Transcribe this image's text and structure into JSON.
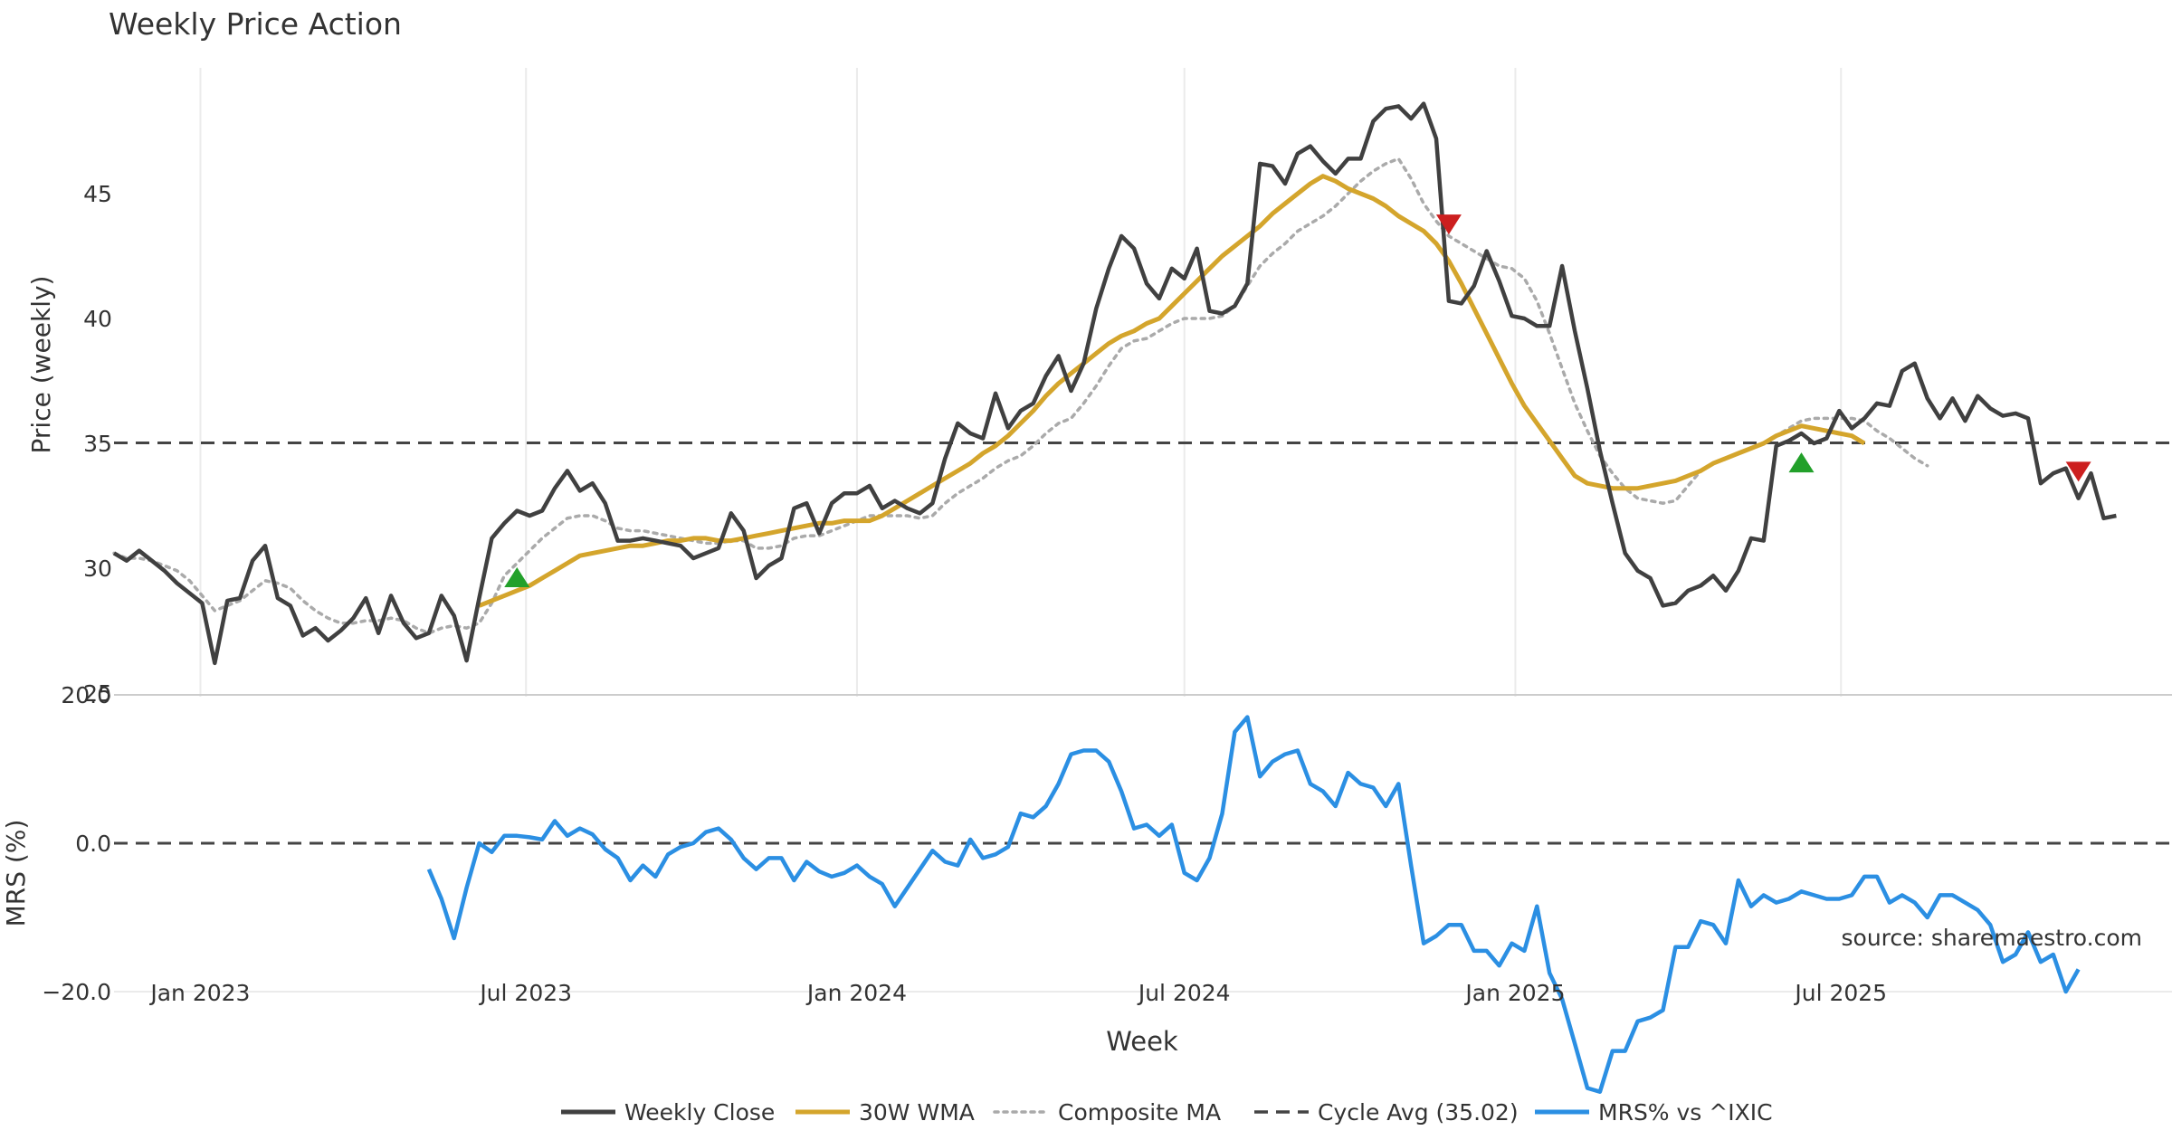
{
  "title": "Weekly Price Action",
  "source": "source: sharemaestro.com",
  "colors": {
    "close": "#404040",
    "wma": "#d4a52c",
    "composite": "#aaaaaa",
    "cycle": "#444444",
    "mrs": "#2b8fe3",
    "buy": "#22a02a",
    "sell": "#cc1f1f",
    "grid": "#ebebeb"
  },
  "chart_data": [
    {
      "type": "line",
      "title": "Weekly Price Action",
      "xlabel": "",
      "ylabel": "Price (weekly)",
      "ylim": [
        25,
        50
      ],
      "yticks": [
        25,
        30,
        35,
        40,
        45
      ],
      "xlim": [
        "2022-11-14",
        "2025-12-31"
      ],
      "grid": true,
      "series": [
        {
          "name": "Weekly Close",
          "x_start": "2022-11-14",
          "x_step_days": 7,
          "values": [
            30.6,
            30.3,
            30.7,
            30.3,
            29.9,
            29.4,
            29.0,
            28.6,
            26.2,
            28.7,
            28.8,
            30.3,
            30.9,
            28.8,
            28.5,
            27.3,
            27.6,
            27.1,
            27.5,
            28.0,
            28.8,
            27.4,
            28.9,
            27.8,
            27.2,
            27.4,
            28.9,
            28.1,
            26.3,
            28.8,
            31.2,
            31.8,
            32.3,
            32.1,
            32.3,
            33.2,
            33.9,
            33.1,
            33.4,
            32.6,
            31.1,
            31.1,
            31.2,
            31.1,
            31.0,
            30.9,
            30.4,
            30.6,
            30.8,
            32.2,
            31.5,
            29.6,
            30.1,
            30.4,
            32.4,
            32.6,
            31.4,
            32.6,
            33.0,
            33.0,
            33.3,
            32.4,
            32.7,
            32.4,
            32.2,
            32.6,
            34.4,
            35.8,
            35.4,
            35.2,
            37.0,
            35.6,
            36.3,
            36.6,
            37.7,
            38.5,
            37.1,
            38.2,
            40.4,
            42.0,
            43.3,
            42.8,
            41.4,
            40.8,
            42.0,
            41.6,
            42.8,
            40.3,
            40.2,
            40.5,
            41.4,
            46.2,
            46.1,
            45.4,
            46.6,
            46.9,
            46.3,
            45.8,
            46.4,
            46.4,
            47.9,
            48.4,
            48.5,
            48.0,
            48.6,
            47.2,
            40.7,
            40.6,
            41.3,
            42.7,
            41.5,
            40.1,
            40.0,
            39.7,
            39.7,
            42.1,
            39.5,
            37.2,
            34.7,
            32.6,
            30.6,
            29.9,
            29.6,
            28.5,
            28.6,
            29.1,
            29.3,
            29.7,
            29.1,
            29.9,
            31.2,
            31.1,
            34.9,
            35.1,
            35.4,
            35.0,
            35.2,
            36.3,
            35.6,
            36.0,
            36.6,
            36.5,
            37.9,
            38.2,
            36.8,
            36.0,
            36.8,
            35.9,
            36.9,
            36.4,
            36.1,
            36.2,
            36.0,
            33.4,
            33.8,
            34.0,
            32.8,
            33.8,
            32.0,
            32.1
          ]
        },
        {
          "name": "30W WMA",
          "x_start": "2023-06-05",
          "x_step_days": 7,
          "values": [
            28.5,
            28.7,
            28.9,
            29.1,
            29.3,
            29.6,
            29.9,
            30.2,
            30.5,
            30.6,
            30.7,
            30.8,
            30.9,
            30.9,
            31.0,
            31.1,
            31.1,
            31.2,
            31.2,
            31.1,
            31.1,
            31.2,
            31.3,
            31.4,
            31.5,
            31.6,
            31.7,
            31.8,
            31.8,
            31.9,
            31.9,
            31.9,
            32.1,
            32.4,
            32.7,
            33.0,
            33.3,
            33.6,
            33.9,
            34.2,
            34.6,
            34.9,
            35.3,
            35.8,
            36.3,
            36.9,
            37.4,
            37.8,
            38.2,
            38.6,
            39.0,
            39.3,
            39.5,
            39.8,
            40.0,
            40.5,
            41.0,
            41.5,
            42.0,
            42.5,
            42.9,
            43.3,
            43.7,
            44.2,
            44.6,
            45.0,
            45.4,
            45.7,
            45.5,
            45.2,
            45.0,
            44.8,
            44.5,
            44.1,
            43.8,
            43.5,
            43.0,
            42.3,
            41.4,
            40.4,
            39.4,
            38.4,
            37.4,
            36.5,
            35.8,
            35.1,
            34.4,
            33.7,
            33.4,
            33.3,
            33.2,
            33.2,
            33.2,
            33.3,
            33.4,
            33.5,
            33.7,
            33.9,
            34.2,
            34.4,
            34.6,
            34.8,
            35.0,
            35.3,
            35.5,
            35.7,
            35.6,
            35.5,
            35.4,
            35.3,
            35.0
          ]
        },
        {
          "name": "Composite MA",
          "x_start": "2022-11-14",
          "x_step_days": 7,
          "values": [
            30.6,
            30.4,
            30.4,
            30.3,
            30.1,
            29.9,
            29.5,
            28.9,
            28.3,
            28.5,
            28.7,
            29.1,
            29.5,
            29.4,
            29.2,
            28.7,
            28.3,
            28.0,
            27.8,
            27.8,
            27.9,
            27.9,
            28.0,
            27.9,
            27.6,
            27.4,
            27.6,
            27.7,
            27.6,
            27.8,
            28.6,
            29.7,
            30.2,
            30.7,
            31.2,
            31.6,
            32.0,
            32.1,
            32.1,
            31.9,
            31.6,
            31.5,
            31.5,
            31.4,
            31.3,
            31.2,
            31.1,
            31.0,
            31.0,
            31.1,
            31.1,
            30.8,
            30.8,
            30.9,
            31.2,
            31.3,
            31.3,
            31.5,
            31.7,
            31.9,
            32.1,
            32.1,
            32.1,
            32.1,
            32.0,
            32.1,
            32.6,
            33.0,
            33.3,
            33.6,
            34.0,
            34.3,
            34.5,
            34.9,
            35.4,
            35.8,
            36.0,
            36.6,
            37.3,
            38.1,
            38.8,
            39.1,
            39.2,
            39.5,
            39.8,
            40.0,
            40.0,
            40.0,
            40.1,
            40.5,
            41.3,
            42.1,
            42.6,
            43.0,
            43.5,
            43.8,
            44.1,
            44.5,
            45.0,
            45.5,
            45.9,
            46.2,
            46.4,
            45.6,
            44.6,
            43.9,
            43.3,
            43.0,
            42.7,
            42.4,
            42.1,
            42.0,
            41.6,
            40.7,
            39.4,
            38.0,
            36.6,
            35.5,
            34.5,
            33.8,
            33.2,
            32.8,
            32.7,
            32.6,
            32.7,
            33.3,
            33.9,
            34.2,
            34.4,
            34.6,
            34.8,
            35.0,
            35.3,
            35.6,
            35.9,
            36.0,
            36.0,
            36.0,
            36.0,
            35.9,
            35.5,
            35.2,
            34.8,
            34.4,
            34.1
          ]
        },
        {
          "name": "Cycle Avg (35.02)",
          "value": 35.02
        }
      ],
      "annotations": [
        {
          "type": "buy",
          "x": "2023-06-26",
          "y": 29.6
        },
        {
          "type": "sell",
          "x": "2024-11-25",
          "y": 43.8
        },
        {
          "type": "buy",
          "x": "2025-06-09",
          "y": 34.2
        },
        {
          "type": "sell",
          "x": "2025-11-10",
          "y": 33.9
        }
      ]
    },
    {
      "type": "line",
      "xlabel": "Week",
      "ylabel": "MRS (%)",
      "ylim": [
        -33.5,
        20
      ],
      "yticks": [
        20,
        0,
        -20
      ],
      "ytick_labels": [
        "20.0",
        "0.0",
        "−20.0"
      ],
      "xticks": [
        "2023-01-01",
        "2023-07-01",
        "2024-01-01",
        "2024-07-01",
        "2025-01-01",
        "2025-07-01"
      ],
      "xtick_labels": [
        "Jan 2023",
        "Jul 2023",
        "Jan 2024",
        "Jul 2024",
        "Jan 2025",
        "Jul 2025"
      ],
      "series": [
        {
          "name": "MRS% vs ^IXIC",
          "x_start": "2023-05-08",
          "x_step_days": 7,
          "values": [
            -3.5,
            -7.5,
            -12.8,
            -6.0,
            0.0,
            -1.2,
            1.0,
            1.0,
            0.8,
            0.5,
            3.0,
            1.0,
            2.0,
            1.2,
            -0.8,
            -2.0,
            -5.0,
            -3.0,
            -4.5,
            -1.5,
            -0.5,
            0.0,
            1.5,
            2.0,
            0.5,
            -2.0,
            -3.5,
            -2.0,
            -2.0,
            -5.0,
            -2.5,
            -3.8,
            -4.5,
            -4.0,
            -3.0,
            -4.5,
            -5.5,
            -8.5,
            -6.0,
            -3.5,
            -1.0,
            -2.5,
            -3.0,
            0.5,
            -2.0,
            -1.5,
            -0.5,
            4.0,
            3.5,
            5.0,
            8.0,
            12.0,
            12.5,
            12.5,
            11.0,
            7.0,
            2.0,
            2.5,
            1.0,
            2.5,
            -4.0,
            -5.0,
            -2.0,
            4.0,
            15.0,
            17.0,
            9.0,
            11.0,
            12.0,
            12.5,
            8.0,
            7.0,
            5.0,
            9.5,
            8.0,
            7.5,
            5.0,
            8.0,
            -3.0,
            -13.5,
            -12.5,
            -11.0,
            -11.0,
            -14.5,
            -14.5,
            -16.5,
            -13.5,
            -14.5,
            -8.5,
            -17.5,
            -21.0,
            -27.0,
            -33.0,
            -33.5,
            -28.0,
            -28.0,
            -24.0,
            -23.5,
            -22.5,
            -14.0,
            -14.0,
            -10.5,
            -11.0,
            -13.5,
            -5.0,
            -8.5,
            -7.0,
            -8.0,
            -7.5,
            -6.5,
            -7.0,
            -7.5,
            -7.5,
            -7.0,
            -4.5,
            -4.5,
            -8.0,
            -7.0,
            -8.0,
            -10.0,
            -7.0,
            -7.0,
            -8.0,
            -9.0,
            -11.0,
            -16.0,
            -15.0,
            -12.0,
            -16.0,
            -15.0,
            -20.0,
            -17.0
          ]
        },
        {
          "name": "zero",
          "value": 0
        }
      ]
    }
  ],
  "legend": {
    "placement": "bottom",
    "items": [
      {
        "label": "Weekly Close",
        "style": "solid",
        "color": "#404040"
      },
      {
        "label": "30W WMA",
        "style": "solid",
        "color": "#d4a52c"
      },
      {
        "label": "Composite MA",
        "style": "dotted",
        "color": "#aaaaaa"
      },
      {
        "label": "Cycle Avg (35.02)",
        "style": "dashed",
        "color": "#444444"
      },
      {
        "label": "MRS% vs ^IXIC",
        "style": "solid",
        "color": "#2b8fe3"
      }
    ]
  }
}
